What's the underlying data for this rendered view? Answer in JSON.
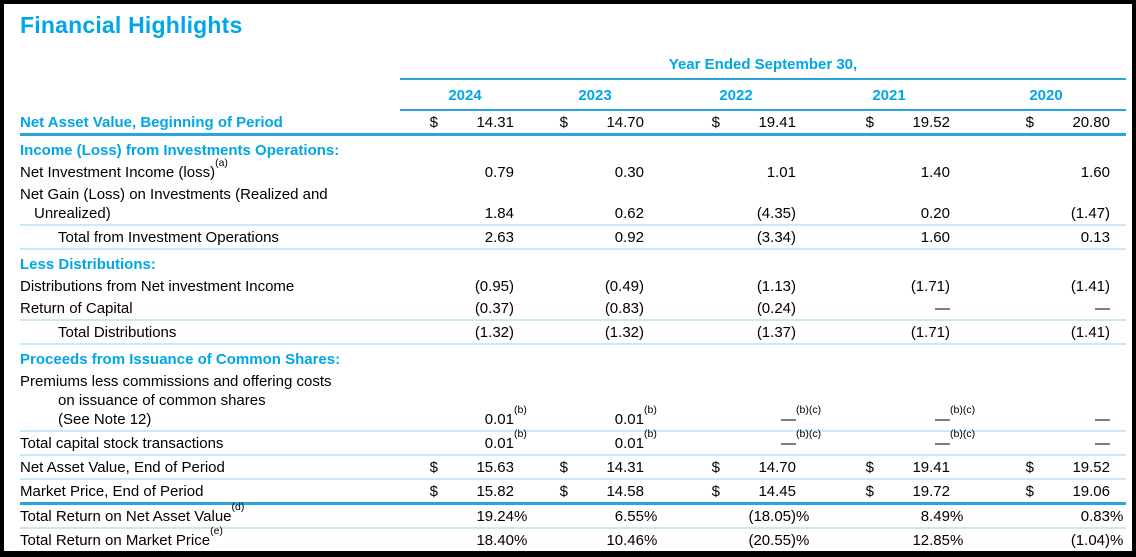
{
  "title": "Financial Highlights",
  "colors": {
    "accent": "#00a6e6",
    "line_medium": "#2aa4df",
    "line_light": "#c9e9f8",
    "frame": "#000000",
    "background": "#ffffff",
    "text": "#000000"
  },
  "table": {
    "period_header": "Year Ended September 30,",
    "years": [
      "2024",
      "2023",
      "2022",
      "2021",
      "2020"
    ],
    "rows": [
      {
        "name": "net-asset-value-beginning",
        "style": "head",
        "border_bottom": "heavy",
        "lines": [
          {
            "t": "Net Asset Value, Beginning of Period",
            "i": 0
          }
        ],
        "cells": [
          {
            "d": "$",
            "v": "14.31"
          },
          {
            "d": "$",
            "v": "14.70"
          },
          {
            "d": "$",
            "v": "19.41"
          },
          {
            "d": "$",
            "v": "19.52"
          },
          {
            "d": "$",
            "v": "20.80"
          }
        ]
      },
      {
        "name": "section-income-loss-operations",
        "style": "section",
        "lines": [
          {
            "t": "Income (Loss) from Investments Operations:",
            "i": 0
          }
        ],
        "cells": []
      },
      {
        "name": "net-investment-income",
        "style": "plain",
        "lines": [
          {
            "t": "Net Investment Income (loss)",
            "i": 0,
            "sup": "(a)"
          }
        ],
        "cells": [
          {
            "v": "0.79"
          },
          {
            "v": "0.30"
          },
          {
            "v": "1.01"
          },
          {
            "v": "1.40"
          },
          {
            "v": "1.60"
          }
        ]
      },
      {
        "name": "net-gain-loss-on-investments",
        "style": "plain",
        "lines": [
          {
            "t": "Net Gain (Loss) on Investments (Realized and",
            "i": 0
          },
          {
            "t": "Unrealized)",
            "i": 1
          }
        ],
        "cells": [
          {
            "v": "1.84"
          },
          {
            "v": "0.62"
          },
          {
            "v": "(4.35)"
          },
          {
            "v": "0.20"
          },
          {
            "v": "(1.47)"
          }
        ]
      },
      {
        "name": "total-from-investment-operations",
        "style": "plain",
        "border_top": "light",
        "border_bottom": "light",
        "lines": [
          {
            "t": "Total from Investment Operations",
            "i": 2
          }
        ],
        "cells": [
          {
            "v": "2.63"
          },
          {
            "v": "0.92"
          },
          {
            "v": "(3.34)"
          },
          {
            "v": "1.60"
          },
          {
            "v": "0.13"
          }
        ]
      },
      {
        "name": "section-less-distributions",
        "style": "section",
        "lines": [
          {
            "t": "Less Distributions:",
            "i": 0
          }
        ],
        "cells": []
      },
      {
        "name": "distributions-from-net-investment-income",
        "style": "plain",
        "lines": [
          {
            "t": "Distributions from Net investment Income",
            "i": 0
          }
        ],
        "cells": [
          {
            "v": "(0.95)"
          },
          {
            "v": "(0.49)"
          },
          {
            "v": "(1.13)"
          },
          {
            "v": "(1.71)"
          },
          {
            "v": "(1.41)"
          }
        ]
      },
      {
        "name": "return-of-capital",
        "style": "plain",
        "lines": [
          {
            "t": "Return of Capital",
            "i": 0
          }
        ],
        "cells": [
          {
            "v": "(0.37)"
          },
          {
            "v": "(0.83)"
          },
          {
            "v": "(0.24)"
          },
          {
            "v": "—"
          },
          {
            "v": "—"
          }
        ]
      },
      {
        "name": "total-distributions",
        "style": "plain",
        "border_top": "light",
        "border_bottom": "light",
        "lines": [
          {
            "t": "Total Distributions",
            "i": 2
          }
        ],
        "cells": [
          {
            "v": "(1.32)"
          },
          {
            "v": "(1.32)"
          },
          {
            "v": "(1.37)"
          },
          {
            "v": "(1.71)"
          },
          {
            "v": "(1.41)"
          }
        ]
      },
      {
        "name": "section-proceeds-issuance-common-shares",
        "style": "section",
        "lines": [
          {
            "t": "Proceeds from Issuance of Common Shares:",
            "i": 0
          }
        ],
        "cells": []
      },
      {
        "name": "premiums-less-commissions",
        "style": "plain",
        "lines": [
          {
            "t": "Premiums less commissions and offering costs",
            "i": 0
          },
          {
            "t": "on issuance of common shares",
            "i": 2
          },
          {
            "t": "(See Note 12)",
            "i": 2
          }
        ],
        "cells": [
          {
            "v": "0.01",
            "sup": "(b)"
          },
          {
            "v": "0.01",
            "sup": "(b)"
          },
          {
            "v": "—",
            "sup": "(b)(c)"
          },
          {
            "v": "—",
            "sup": "(b)(c)"
          },
          {
            "v": "—"
          }
        ]
      },
      {
        "name": "total-capital-stock-transactions",
        "style": "plain",
        "border_top": "light",
        "border_bottom": "light",
        "lines": [
          {
            "t": "Total capital stock transactions",
            "i": 0
          }
        ],
        "cells": [
          {
            "v": "0.01",
            "sup": "(b)"
          },
          {
            "v": "0.01",
            "sup": "(b)"
          },
          {
            "v": "—",
            "sup": "(b)(c)"
          },
          {
            "v": "—",
            "sup": "(b)(c)"
          },
          {
            "v": "—"
          }
        ]
      },
      {
        "name": "net-asset-value-end",
        "style": "plain",
        "border_bottom": "light",
        "lines": [
          {
            "t": "Net Asset Value, End of Period",
            "i": 0
          }
        ],
        "cells": [
          {
            "d": "$",
            "v": "15.63"
          },
          {
            "d": "$",
            "v": "14.31"
          },
          {
            "d": "$",
            "v": "14.70"
          },
          {
            "d": "$",
            "v": "19.41"
          },
          {
            "d": "$",
            "v": "19.52"
          }
        ]
      },
      {
        "name": "market-price-end",
        "style": "plain",
        "border_bottom": "heavy",
        "lines": [
          {
            "t": "Market Price, End of Period",
            "i": 0
          }
        ],
        "cells": [
          {
            "d": "$",
            "v": "15.82"
          },
          {
            "d": "$",
            "v": "14.58"
          },
          {
            "d": "$",
            "v": "14.45"
          },
          {
            "d": "$",
            "v": "19.72"
          },
          {
            "d": "$",
            "v": "19.06"
          }
        ]
      },
      {
        "name": "total-return-on-net-asset-value",
        "style": "plain",
        "border_bottom": "light",
        "lines": [
          {
            "t": "Total Return on Net Asset Value",
            "i": 0,
            "sup": "(d)"
          }
        ],
        "cells": [
          {
            "v": "19.24%"
          },
          {
            "v": "6.55%"
          },
          {
            "v": "(18.05)%"
          },
          {
            "v": "8.49%"
          },
          {
            "v": "0.83%"
          }
        ]
      },
      {
        "name": "total-return-on-market-price",
        "style": "plain",
        "lines": [
          {
            "t": "Total Return on Market Price",
            "i": 0,
            "sup": "(e)"
          }
        ],
        "cells": [
          {
            "v": "18.40%"
          },
          {
            "v": "10.46%"
          },
          {
            "v": "(20.55)%"
          },
          {
            "v": "12.85%"
          },
          {
            "v": "(1.04)%"
          }
        ]
      }
    ]
  }
}
